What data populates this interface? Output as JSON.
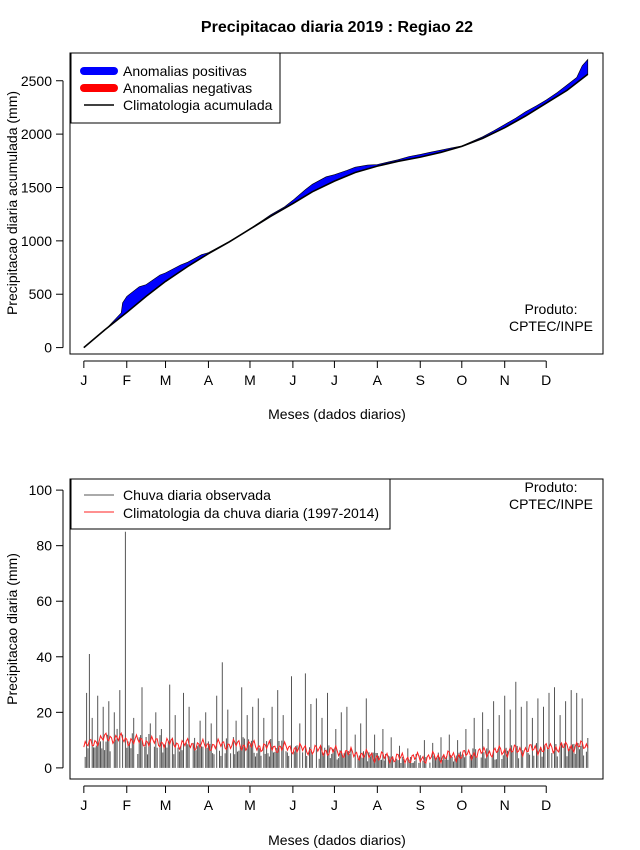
{
  "chart_data": [
    {
      "type": "area",
      "title": "Precipitacao diaria 2019 : Regiao 22",
      "xlabel": "Meses (dados diarios)",
      "ylabel": "Precipitacao diaria acumulada (mm)",
      "x_tick_labels": [
        "J",
        "F",
        "M",
        "A",
        "M",
        "J",
        "J",
        "A",
        "S",
        "O",
        "N",
        "D"
      ],
      "y_ticks": [
        0,
        500,
        1000,
        1500,
        2000,
        2500
      ],
      "ylim": [
        -60,
        2760
      ],
      "xlim_day": [
        -10,
        375
      ],
      "legend": {
        "position": "top-left",
        "items": [
          "Anomalias positivas",
          "Anomalias negativas",
          "Climatologia acumulada"
        ]
      },
      "producer_lines": [
        "Produto:",
        "CPTEC/INPE"
      ],
      "colors": {
        "positive": "#0000ff",
        "negative": "#ff0000",
        "climatology": "#000000"
      },
      "climatology_accumulated": {
        "day": [
          0,
          15,
          31,
          45,
          59,
          75,
          90,
          105,
          120,
          135,
          151,
          165,
          181,
          196,
          212,
          227,
          243,
          258,
          273,
          288,
          304,
          319,
          334,
          349,
          364
        ],
        "mm": [
          0,
          165,
          330,
          480,
          620,
          760,
          880,
          990,
          1110,
          1230,
          1350,
          1460,
          1560,
          1640,
          1700,
          1745,
          1785,
          1830,
          1885,
          1960,
          2060,
          2170,
          2290,
          2410,
          2560
        ]
      },
      "observed_accumulated": {
        "day": [
          0,
          15,
          27,
          28,
          31,
          40,
          45,
          55,
          59,
          70,
          75,
          85,
          90,
          100,
          105,
          115,
          120,
          130,
          135,
          145,
          151,
          160,
          165,
          175,
          181,
          190,
          196,
          205,
          212,
          220,
          227,
          235,
          243,
          250,
          258,
          265,
          273,
          280,
          288,
          296,
          304,
          312,
          319,
          327,
          334,
          342,
          349,
          356,
          360,
          364
        ],
        "mm": [
          0,
          160,
          325,
          420,
          480,
          570,
          590,
          680,
          700,
          775,
          800,
          870,
          890,
          960,
          995,
          1070,
          1115,
          1200,
          1245,
          1320,
          1380,
          1480,
          1530,
          1600,
          1620,
          1660,
          1690,
          1710,
          1715,
          1740,
          1760,
          1790,
          1810,
          1830,
          1850,
          1870,
          1890,
          1930,
          1975,
          2030,
          2090,
          2150,
          2210,
          2265,
          2320,
          2390,
          2460,
          2530,
          2640,
          2700
        ]
      }
    },
    {
      "type": "bar",
      "xlabel": "Meses (dados diarios)",
      "ylabel": "Precipitacao diaria (mm)",
      "x_tick_labels": [
        "J",
        "F",
        "M",
        "A",
        "M",
        "J",
        "J",
        "A",
        "S",
        "O",
        "N",
        "D"
      ],
      "y_ticks": [
        0,
        20,
        40,
        60,
        80,
        100
      ],
      "ylim": [
        -4,
        104
      ],
      "xlim_day": [
        -10,
        375
      ],
      "legend": {
        "position": "top-left",
        "items": [
          "Chuva diaria observada",
          "Climatologia da chuva diaria (1997-2014)"
        ]
      },
      "producer_lines": [
        "Produto:",
        "CPTEC/INPE"
      ],
      "colors": {
        "observed": "#555555",
        "climatology": "#ff2020"
      },
      "observed_daily_peaks": {
        "day": [
          2,
          4,
          6,
          10,
          14,
          18,
          22,
          26,
          28,
          30,
          36,
          42,
          48,
          52,
          56,
          62,
          66,
          72,
          76,
          84,
          88,
          92,
          96,
          100,
          104,
          110,
          114,
          118,
          122,
          126,
          130,
          136,
          140,
          144,
          150,
          156,
          160,
          164,
          168,
          172,
          176,
          182,
          186,
          190,
          196,
          200,
          204,
          210,
          216,
          222,
          228,
          234,
          240,
          246,
          252,
          258,
          264,
          270,
          276,
          282,
          288,
          292,
          296,
          300,
          304,
          308,
          312,
          316,
          320,
          324,
          328,
          332,
          336,
          340,
          344,
          348,
          352,
          356,
          360
        ],
        "mm": [
          27,
          41,
          18,
          26,
          22,
          24,
          20,
          28,
          12,
          85,
          18,
          29,
          16,
          20,
          14,
          30,
          19,
          27,
          22,
          17,
          20,
          16,
          26,
          38,
          21,
          17,
          29,
          19,
          22,
          25,
          18,
          22,
          28,
          19,
          33,
          16,
          34,
          23,
          25,
          18,
          27,
          14,
          20,
          22,
          12,
          16,
          25,
          12,
          14,
          11,
          8,
          7,
          5,
          10,
          9,
          11,
          12,
          10,
          14,
          18,
          20,
          14,
          24,
          19,
          26,
          21,
          31,
          22,
          24,
          18,
          25,
          22,
          27,
          29,
          19,
          24,
          28,
          27,
          25
        ]
      },
      "climatology_daily": {
        "day": [
          0,
          10,
          20,
          31,
          45,
          59,
          75,
          90,
          105,
          120,
          135,
          151,
          165,
          181,
          196,
          212,
          227,
          243,
          258,
          273,
          288,
          304,
          319,
          334,
          349,
          364
        ],
        "mm": [
          7.5,
          10,
          11,
          10,
          9.5,
          9,
          8.5,
          8,
          8.5,
          8,
          7.5,
          7,
          6.5,
          6,
          5,
          4,
          3.5,
          3.5,
          4,
          4.5,
          5.5,
          6,
          6.5,
          7,
          7.5,
          8
        ]
      }
    }
  ]
}
